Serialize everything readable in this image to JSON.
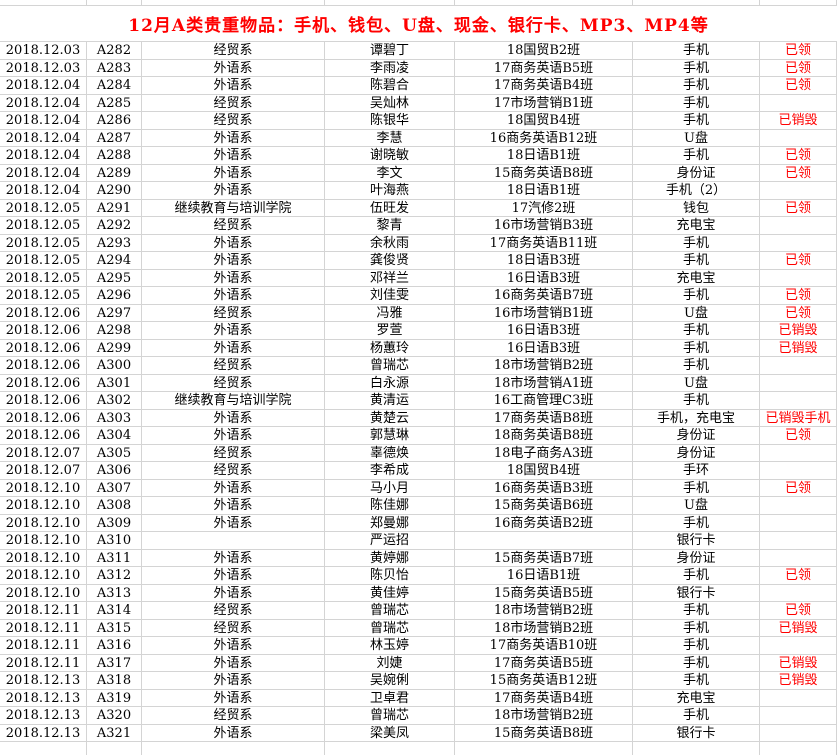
{
  "title": "12月A类贵重物品：手机、钱包、U盘、现金、银行卡、MP3、MP4等",
  "colors": {
    "title_text": "#ff0000",
    "status_text": "#ff0000",
    "cell_text": "#000000",
    "gridline": "#d4d4d4",
    "background": "#ffffff"
  },
  "table": {
    "columns": [
      "date",
      "id",
      "department",
      "name",
      "class_name",
      "item",
      "status"
    ],
    "rows": [
      {
        "date": "2018.12.03",
        "id": "A282",
        "department": "经贸系",
        "name": "谭碧丁",
        "class_name": "18国贸B2班",
        "item": "手机",
        "status": "已领"
      },
      {
        "date": "2018.12.03",
        "id": "A283",
        "department": "外语系",
        "name": "李雨凌",
        "class_name": "17商务英语B5班",
        "item": "手机",
        "status": "已领"
      },
      {
        "date": "2018.12.04",
        "id": "A284",
        "department": "外语系",
        "name": "陈碧合",
        "class_name": "17商务英语B4班",
        "item": "手机",
        "status": "已领"
      },
      {
        "date": "2018.12.04",
        "id": "A285",
        "department": "经贸系",
        "name": "吴灿林",
        "class_name": "17市场营销B1班",
        "item": "手机",
        "status": ""
      },
      {
        "date": "2018.12.04",
        "id": "A286",
        "department": "经贸系",
        "name": "陈银华",
        "class_name": "18国贸B4班",
        "item": "手机",
        "status": "已销毁"
      },
      {
        "date": "2018.12.04",
        "id": "A287",
        "department": "外语系",
        "name": "李慧",
        "class_name": "16商务英语B12班",
        "item": "U盘",
        "status": ""
      },
      {
        "date": "2018.12.04",
        "id": "A288",
        "department": "外语系",
        "name": "谢晓敏",
        "class_name": "18日语B1班",
        "item": "手机",
        "status": "已领"
      },
      {
        "date": "2018.12.04",
        "id": "A289",
        "department": "外语系",
        "name": "李文",
        "class_name": "15商务英语B8班",
        "item": "身份证",
        "status": "已领"
      },
      {
        "date": "2018.12.04",
        "id": "A290",
        "department": "外语系",
        "name": "叶海燕",
        "class_name": "18日语B1班",
        "item": "手机（2）",
        "status": ""
      },
      {
        "date": "2018.12.05",
        "id": "A291",
        "department": "继续教育与培训学院",
        "name": "伍旺发",
        "class_name": "17汽修2班",
        "item": "钱包",
        "status": "已领"
      },
      {
        "date": "2018.12.05",
        "id": "A292",
        "department": "经贸系",
        "name": "黎青",
        "class_name": "16市场营销B3班",
        "item": "充电宝",
        "status": ""
      },
      {
        "date": "2018.12.05",
        "id": "A293",
        "department": "外语系",
        "name": "余秋雨",
        "class_name": "17商务英语B11班",
        "item": "手机",
        "status": ""
      },
      {
        "date": "2018.12.05",
        "id": "A294",
        "department": "外语系",
        "name": "龚俊贤",
        "class_name": "18日语B3班",
        "item": "手机",
        "status": "已领"
      },
      {
        "date": "2018.12.05",
        "id": "A295",
        "department": "外语系",
        "name": "邓祥兰",
        "class_name": "16日语B3班",
        "item": "充电宝",
        "status": ""
      },
      {
        "date": "2018.12.05",
        "id": "A296",
        "department": "外语系",
        "name": "刘佳雯",
        "class_name": "16商务英语B7班",
        "item": "手机",
        "status": "已领"
      },
      {
        "date": "2018.12.06",
        "id": "A297",
        "department": "经贸系",
        "name": "冯雅",
        "class_name": "16市场营销B1班",
        "item": "U盘",
        "status": "已领"
      },
      {
        "date": "2018.12.06",
        "id": "A298",
        "department": "外语系",
        "name": "罗萱",
        "class_name": "16日语B3班",
        "item": "手机",
        "status": "已销毁"
      },
      {
        "date": "2018.12.06",
        "id": "A299",
        "department": "外语系",
        "name": "杨蕙玲",
        "class_name": "16日语B3班",
        "item": "手机",
        "status": "已销毁"
      },
      {
        "date": "2018.12.06",
        "id": "A300",
        "department": "经贸系",
        "name": "曾瑞芯",
        "class_name": "18市场营销B2班",
        "item": "手机",
        "status": ""
      },
      {
        "date": "2018.12.06",
        "id": "A301",
        "department": "经贸系",
        "name": "白永源",
        "class_name": "18市场营销A1班",
        "item": "U盘",
        "status": ""
      },
      {
        "date": "2018.12.06",
        "id": "A302",
        "department": "继续教育与培训学院",
        "name": "黄清运",
        "class_name": "16工商管理C3班",
        "item": "手机",
        "status": ""
      },
      {
        "date": "2018.12.06",
        "id": "A303",
        "department": "外语系",
        "name": "黄楚云",
        "class_name": "17商务英语B8班",
        "item": "手机，充电宝",
        "status": "已销毁手机"
      },
      {
        "date": "2018.12.06",
        "id": "A304",
        "department": "外语系",
        "name": "郭慧琳",
        "class_name": "18商务英语B8班",
        "item": "身份证",
        "status": "已领"
      },
      {
        "date": "2018.12.07",
        "id": "A305",
        "department": "经贸系",
        "name": "辜德焕",
        "class_name": "18电子商务A3班",
        "item": "身份证",
        "status": ""
      },
      {
        "date": "2018.12.07",
        "id": "A306",
        "department": "经贸系",
        "name": "李希成",
        "class_name": "18国贸B4班",
        "item": "手环",
        "status": ""
      },
      {
        "date": "2018.12.10",
        "id": "A307",
        "department": "外语系",
        "name": "马小月",
        "class_name": "16商务英语B3班",
        "item": "手机",
        "status": "已领"
      },
      {
        "date": "2018.12.10",
        "id": "A308",
        "department": "外语系",
        "name": "陈佳娜",
        "class_name": "15商务英语B6班",
        "item": "U盘",
        "status": ""
      },
      {
        "date": "2018.12.10",
        "id": "A309",
        "department": "外语系",
        "name": "郑曼娜",
        "class_name": "16商务英语B2班",
        "item": "手机",
        "status": ""
      },
      {
        "date": "2018.12.10",
        "id": "A310",
        "department": "",
        "name": "严运招",
        "class_name": "",
        "item": "银行卡",
        "status": ""
      },
      {
        "date": "2018.12.10",
        "id": "A311",
        "department": "外语系",
        "name": "黄婷娜",
        "class_name": "15商务英语B7班",
        "item": "身份证",
        "status": ""
      },
      {
        "date": "2018.12.10",
        "id": "A312",
        "department": "外语系",
        "name": "陈贝怡",
        "class_name": "16日语B1班",
        "item": "手机",
        "status": "已领"
      },
      {
        "date": "2018.12.10",
        "id": "A313",
        "department": "外语系",
        "name": "黄佳婷",
        "class_name": "15商务英语B5班",
        "item": "银行卡",
        "status": ""
      },
      {
        "date": "2018.12.11",
        "id": "A314",
        "department": "经贸系",
        "name": "曾瑞芯",
        "class_name": "18市场营销B2班",
        "item": "手机",
        "status": "已领"
      },
      {
        "date": "2018.12.11",
        "id": "A315",
        "department": "经贸系",
        "name": "曾瑞芯",
        "class_name": "18市场营销B2班",
        "item": "手机",
        "status": "已销毁"
      },
      {
        "date": "2018.12.11",
        "id": "A316",
        "department": "外语系",
        "name": "林玉婷",
        "class_name": "17商务英语B10班",
        "item": "手机",
        "status": ""
      },
      {
        "date": "2018.12.11",
        "id": "A317",
        "department": "外语系",
        "name": "刘婕",
        "class_name": "17商务英语B5班",
        "item": "手机",
        "status": "已销毁"
      },
      {
        "date": "2018.12.13",
        "id": "A318",
        "department": "外语系",
        "name": "吴婉俐",
        "class_name": "15商务英语B12班",
        "item": "手机",
        "status": "已销毁"
      },
      {
        "date": "2018.12.13",
        "id": "A319",
        "department": "外语系",
        "name": "卫卓君",
        "class_name": "17商务英语B4班",
        "item": "充电宝",
        "status": ""
      },
      {
        "date": "2018.12.13",
        "id": "A320",
        "department": "经贸系",
        "name": "曾瑞芯",
        "class_name": "18市场营销B2班",
        "item": "手机",
        "status": ""
      },
      {
        "date": "2018.12.13",
        "id": "A321",
        "department": "外语系",
        "name": "梁美凤",
        "class_name": "15商务英语B8班",
        "item": "银行卡",
        "status": ""
      }
    ]
  }
}
